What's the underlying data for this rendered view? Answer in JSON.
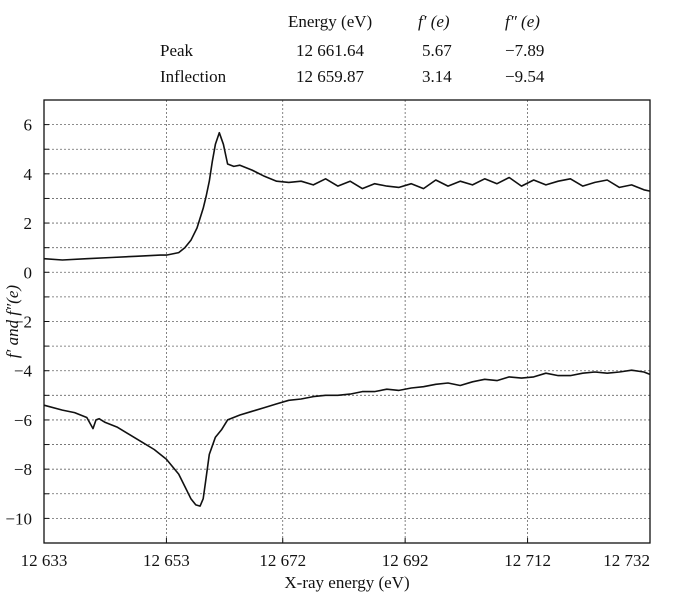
{
  "figure_table": {
    "headers": [
      "Energy (eV)",
      "f′ (e)",
      "f″ (e)"
    ],
    "rows": [
      {
        "label": "Peak",
        "energy": "12 661.64",
        "f_prime": "5.67",
        "f_double_prime": "−7.89"
      },
      {
        "label": "Inflection",
        "energy": "12 659.87",
        "f_prime": "3.14",
        "f_double_prime": "−9.54"
      }
    ]
  },
  "chart_data": {
    "type": "line",
    "title": "",
    "xlabel": "X-ray energy (eV)",
    "ylabel": "f′ and f″(e)",
    "xlim": [
      12633,
      12732
    ],
    "ylim": [
      -11,
      7
    ],
    "x_ticks": [
      12633,
      12653,
      12672,
      12692,
      12712,
      12732
    ],
    "x_tick_labels": [
      "12 633",
      "12 653",
      "12 672",
      "12 692",
      "12 712",
      "12 732"
    ],
    "y_ticks": [
      -10,
      -8,
      -6,
      -4,
      -2,
      0,
      2,
      4,
      6
    ],
    "y_tick_labels": [
      "−10",
      "−8",
      "−6",
      "−4",
      "−2",
      "0",
      "2",
      "4",
      "6"
    ],
    "grid": true,
    "grid_style": "dotted",
    "line_color": "#111111",
    "series": [
      {
        "x": [
          12633,
          12636,
          12640,
          12644,
          12648,
          12652,
          12653,
          12655,
          12656,
          12657,
          12658,
          12659,
          12659.5,
          12660,
          12660.5,
          12661,
          12661.64,
          12662.3,
          12663,
          12664,
          12665,
          12667,
          12669,
          12671,
          12673,
          12675,
          12677,
          12679,
          12681,
          12683,
          12685,
          12687,
          12689,
          12691,
          12693,
          12695,
          12697,
          12699,
          12701,
          12703,
          12705,
          12707,
          12709,
          12711,
          12713,
          12715,
          12717,
          12719,
          12721,
          12723,
          12725,
          12727,
          12729,
          12731,
          12732
        ],
        "values": [
          0.55,
          0.5,
          0.55,
          0.6,
          0.65,
          0.7,
          0.7,
          0.8,
          1.0,
          1.3,
          1.8,
          2.6,
          3.1,
          3.7,
          4.5,
          5.2,
          5.67,
          5.2,
          4.4,
          4.3,
          4.35,
          4.15,
          3.9,
          3.7,
          3.65,
          3.7,
          3.55,
          3.8,
          3.5,
          3.7,
          3.4,
          3.6,
          3.5,
          3.45,
          3.6,
          3.4,
          3.75,
          3.5,
          3.7,
          3.55,
          3.8,
          3.6,
          3.85,
          3.5,
          3.75,
          3.55,
          3.7,
          3.8,
          3.5,
          3.65,
          3.75,
          3.45,
          3.55,
          3.35,
          3.3
        ]
      },
      {
        "x": [
          12633,
          12636,
          12638,
          12640,
          12641,
          12641.5,
          12642,
          12643,
          12645,
          12647,
          12649,
          12651,
          12653,
          12655,
          12656,
          12657,
          12657.8,
          12658.5,
          12659,
          12659.4,
          12660,
          12661,
          12662,
          12663,
          12665,
          12667,
          12669,
          12671,
          12673,
          12675,
          12677,
          12679,
          12681,
          12683,
          12685,
          12687,
          12689,
          12691,
          12693,
          12695,
          12697,
          12699,
          12701,
          12703,
          12705,
          12707,
          12709,
          12711,
          12713,
          12715,
          12717,
          12719,
          12721,
          12723,
          12725,
          12727,
          12729,
          12731,
          12732
        ],
        "values": [
          -5.4,
          -5.6,
          -5.7,
          -5.9,
          -6.35,
          -6.0,
          -5.95,
          -6.1,
          -6.3,
          -6.6,
          -6.9,
          -7.2,
          -7.6,
          -8.2,
          -8.7,
          -9.2,
          -9.45,
          -9.5,
          -9.2,
          -8.5,
          -7.4,
          -6.7,
          -6.4,
          -6.0,
          -5.8,
          -5.65,
          -5.5,
          -5.35,
          -5.2,
          -5.15,
          -5.05,
          -5.0,
          -5.0,
          -4.95,
          -4.85,
          -4.85,
          -4.75,
          -4.8,
          -4.7,
          -4.65,
          -4.55,
          -4.5,
          -4.6,
          -4.45,
          -4.35,
          -4.4,
          -4.25,
          -4.3,
          -4.25,
          -4.1,
          -4.2,
          -4.2,
          -4.1,
          -4.05,
          -4.1,
          -4.05,
          -3.98,
          -4.05,
          -4.15
        ]
      }
    ]
  }
}
